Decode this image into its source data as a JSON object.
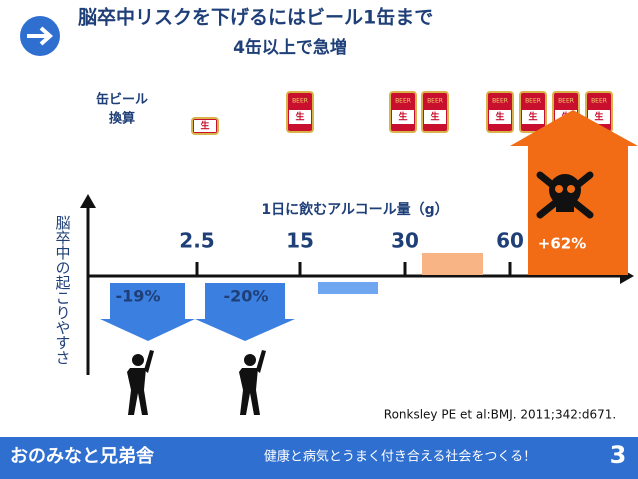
{
  "header": {
    "title": "脳卒中リスクを下げるにはビール1缶まで",
    "subtitle": "4缶以上で急増"
  },
  "can_label": [
    "缶ビール",
    "換算"
  ],
  "can_icon": {
    "brand": "BEER",
    "kanji": "生"
  },
  "chart": {
    "x_axis_label": "1日に飲むアルコール量（g）",
    "y_axis_label": "脳卒中の起こりやすさ",
    "ticks": [
      "2.5",
      "15",
      "30",
      "60"
    ],
    "effects": [
      "-19%",
      "-20%",
      "+62%"
    ]
  },
  "citation": "Ronksley PE et al:BMJ. 2011;342:d671.",
  "footer": {
    "org": "おのみなと兄弟舎",
    "slogan": "健康と病気とうまく付き合える社会をつくる！",
    "page": "3"
  }
}
